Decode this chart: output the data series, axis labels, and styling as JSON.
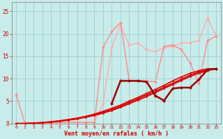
{
  "xlabel": "Vent moyen/en rafales ( km/h )",
  "xlim": [
    -0.5,
    23.5
  ],
  "ylim": [
    0,
    27
  ],
  "yticks": [
    0,
    5,
    10,
    15,
    20,
    25
  ],
  "xticks": [
    0,
    1,
    2,
    3,
    4,
    5,
    6,
    7,
    8,
    9,
    10,
    11,
    12,
    13,
    14,
    15,
    16,
    17,
    18,
    19,
    20,
    21,
    22,
    23
  ],
  "bg_color": "#c8ecea",
  "grid_color": "#9ecece",
  "red_lines": {
    "color": "#dd0000",
    "lw": 1.2,
    "marker": "D",
    "ms": 1.8,
    "lines": [
      [
        0.0,
        0.0,
        0.1,
        0.2,
        0.4,
        0.6,
        0.9,
        1.2,
        1.6,
        2.1,
        2.7,
        3.4,
        4.1,
        5.0,
        5.8,
        6.7,
        7.6,
        8.5,
        9.5,
        10.4,
        11.2,
        11.8,
        12.2,
        12.2
      ],
      [
        0.0,
        0.0,
        0.1,
        0.2,
        0.35,
        0.55,
        0.8,
        1.1,
        1.5,
        1.95,
        2.5,
        3.1,
        3.8,
        4.7,
        5.5,
        6.35,
        7.2,
        8.1,
        9.0,
        9.9,
        10.8,
        11.5,
        12.0,
        12.2
      ],
      [
        0.0,
        0.0,
        0.05,
        0.15,
        0.3,
        0.5,
        0.75,
        1.0,
        1.4,
        1.8,
        2.3,
        2.9,
        3.6,
        4.4,
        5.2,
        6.0,
        6.9,
        7.8,
        8.7,
        9.6,
        10.5,
        11.2,
        11.8,
        12.2
      ]
    ]
  },
  "pink_line1_x": [
    0,
    1,
    2,
    3,
    4,
    5,
    6,
    7,
    8,
    9,
    10,
    11,
    12,
    13,
    14,
    15,
    16,
    17,
    18,
    19,
    20,
    21,
    22,
    23
  ],
  "pink_line1_y": [
    6.5,
    0.1,
    0.1,
    0.1,
    0.2,
    0.2,
    0.3,
    0.3,
    0.3,
    0.3,
    17.0,
    20.5,
    22.5,
    9.5,
    9.5,
    9.5,
    9.3,
    17.2,
    17.5,
    16.5,
    13.5,
    9.0,
    18.5,
    19.5
  ],
  "pink_line1_color": "#ff8888",
  "pink_line1_lw": 1.0,
  "pink_line2_x": [
    0,
    1,
    2,
    3,
    4,
    5,
    6,
    7,
    8,
    9,
    10,
    11,
    12,
    13,
    14,
    15,
    16,
    17,
    18,
    19,
    20,
    21,
    22,
    23
  ],
  "pink_line2_y": [
    0.0,
    0.0,
    0.0,
    0.1,
    0.15,
    0.2,
    0.3,
    0.3,
    0.3,
    0.3,
    4.5,
    17.0,
    22.0,
    17.5,
    18.0,
    16.5,
    16.0,
    16.8,
    17.2,
    18.0,
    18.0,
    18.5,
    23.5,
    19.5
  ],
  "pink_line2_color": "#ffaaaa",
  "pink_line2_lw": 1.0,
  "dark_line_x": [
    11,
    12,
    13,
    14,
    15,
    16,
    17,
    18,
    19,
    20,
    21,
    22,
    23
  ],
  "dark_line_y": [
    4.5,
    9.5,
    9.5,
    9.5,
    9.3,
    6.2,
    5.1,
    7.8,
    8.0,
    8.0,
    9.8,
    12.0,
    12.2
  ],
  "dark_line_color": "#990000",
  "dark_line_lw": 1.8,
  "dark_line_marker": "D",
  "dark_line_ms": 2.5
}
